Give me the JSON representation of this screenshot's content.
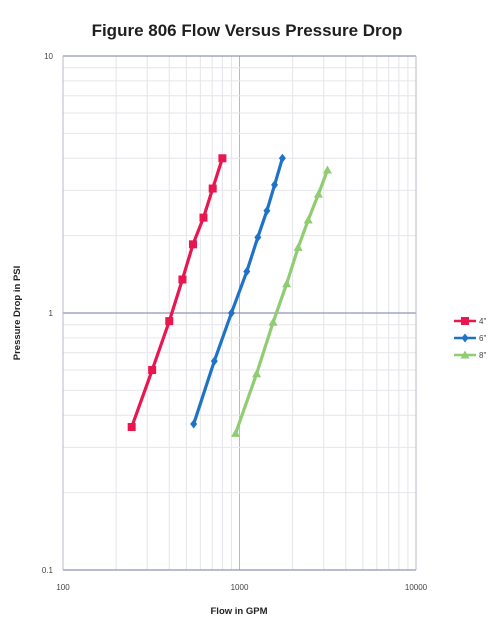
{
  "chart_data": {
    "type": "line",
    "title": "Figure 806 Flow Versus Pressure Drop",
    "xlabel": "Flow in GPM",
    "ylabel": "Pressure Drop in PSI",
    "xscale": "log",
    "yscale": "log",
    "xlim": [
      100,
      10000
    ],
    "ylim": [
      0.1,
      10
    ],
    "x_ticks": [
      {
        "value": 100,
        "label": "100"
      },
      {
        "value": 1000,
        "label": "1000"
      },
      {
        "value": 10000,
        "label": "10000"
      }
    ],
    "y_ticks": [
      {
        "value": 0.1,
        "label": "0.1"
      },
      {
        "value": 1,
        "label": "1"
      },
      {
        "value": 10,
        "label": "10"
      }
    ],
    "grid": true,
    "legend_position": "right",
    "series": [
      {
        "name": "4\"",
        "color": "#e8174f",
        "marker": "square",
        "x": [
          245,
          320,
          400,
          475,
          545,
          625,
          705,
          800
        ],
        "y": [
          0.36,
          0.6,
          0.93,
          1.35,
          1.85,
          2.35,
          3.05,
          4.0
        ]
      },
      {
        "name": "6\"",
        "color": "#1e73c8",
        "marker": "diamond",
        "x": [
          550,
          720,
          900,
          1100,
          1270,
          1430,
          1580,
          1750
        ],
        "y": [
          0.37,
          0.65,
          1.0,
          1.45,
          1.97,
          2.5,
          3.15,
          4.0
        ]
      },
      {
        "name": "8\"",
        "color": "#8fcc72",
        "marker": "triangle",
        "x": [
          950,
          1250,
          1550,
          1850,
          2150,
          2450,
          2800,
          3150
        ],
        "y": [
          0.34,
          0.58,
          0.92,
          1.3,
          1.8,
          2.3,
          2.9,
          3.6
        ]
      }
    ]
  }
}
